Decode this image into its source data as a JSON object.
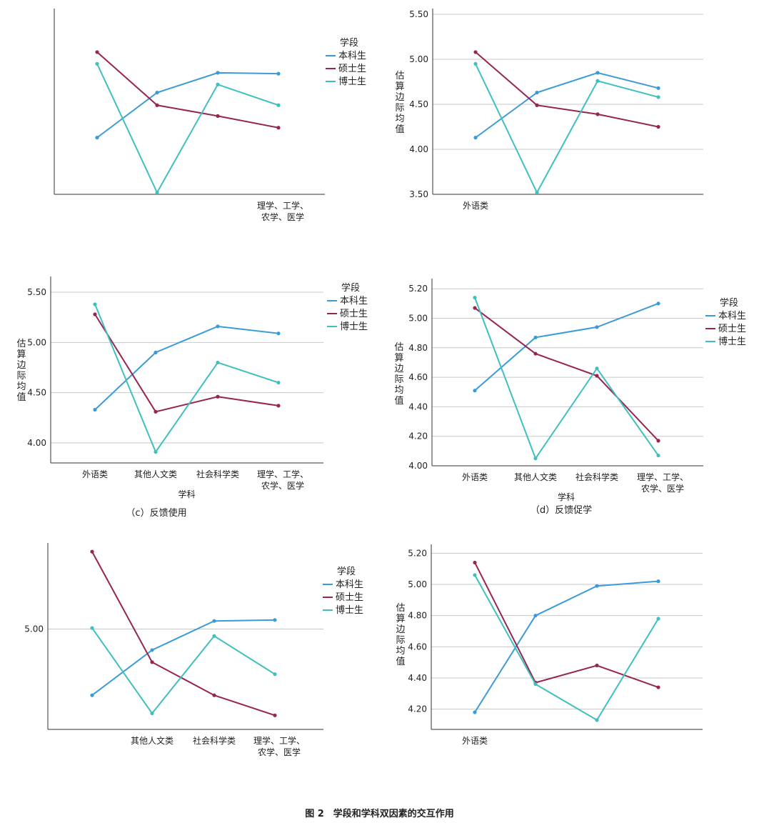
{
  "figure": {
    "caption": "图 2　学段和学科双因素的交互作用",
    "colors": {
      "本科生": "#3a9bd8",
      "硕士生": "#96254f",
      "博士生": "#3fbfbf",
      "axis": "#333333",
      "grid": "#c8c8c8"
    }
  },
  "chart_data": [
    {
      "type": "line",
      "categories": [
        "",
        "",
        "",
        "理学、工学、农学、医学"
      ],
      "series": [
        {
          "name": "本科生",
          "values": [
            4.13,
            4.63,
            4.85,
            4.84
          ]
        },
        {
          "name": "硕士生",
          "values": [
            5.08,
            4.49,
            4.37,
            4.24
          ]
        },
        {
          "name": "博士生",
          "values": [
            4.95,
            3.52,
            4.72,
            4.49
          ]
        }
      ],
      "ylabel": "",
      "xlabel": "",
      "subtitle": "",
      "ylim": [
        3.5,
        5.5
      ],
      "yticks": [],
      "ytick_labels": [],
      "legend": {
        "title": "学段",
        "position": "right"
      },
      "grid": true
    },
    {
      "type": "line",
      "categories": [
        "外语类",
        "",
        "",
        ""
      ],
      "series": [
        {
          "name": "本科生",
          "values": [
            4.13,
            4.63,
            4.85,
            4.68
          ]
        },
        {
          "name": "硕士生",
          "values": [
            5.08,
            4.49,
            4.39,
            4.25
          ]
        },
        {
          "name": "博士生",
          "values": [
            4.95,
            3.52,
            4.76,
            4.58
          ]
        }
      ],
      "ylabel": "估算边际均值",
      "xlabel": "",
      "subtitle": "",
      "ylim": [
        3.5,
        5.5
      ],
      "yticks": [
        3.5,
        4.0,
        4.5,
        5.0,
        5.5
      ],
      "ytick_labels": [
        "3.50",
        "4.00",
        "4.50",
        "5.00",
        "5.50"
      ],
      "legend": null,
      "grid": true
    },
    {
      "type": "line",
      "categories": [
        "外语类",
        "其他人文类",
        "社会科学类",
        "理学、工学、农学、医学"
      ],
      "series": [
        {
          "name": "本科生",
          "values": [
            4.33,
            4.9,
            5.16,
            5.09
          ]
        },
        {
          "name": "硕士生",
          "values": [
            5.28,
            4.31,
            4.46,
            4.37
          ]
        },
        {
          "name": "博士生",
          "values": [
            5.38,
            3.91,
            4.8,
            4.6
          ]
        }
      ],
      "ylabel": "估算边际均值",
      "xlabel": "学科",
      "subtitle": "（c）反馈使用",
      "ylim": [
        3.8,
        5.6
      ],
      "yticks": [
        4.0,
        4.5,
        5.0,
        5.5
      ],
      "ytick_labels": [
        "4.00",
        "4.50",
        "5.00",
        "5.50"
      ],
      "legend": {
        "title": "学段",
        "position": "right"
      },
      "grid": true
    },
    {
      "type": "line",
      "categories": [
        "外语类",
        "其他人文类",
        "社会科学类",
        "理学、工学、农学、医学"
      ],
      "series": [
        {
          "name": "本科生",
          "values": [
            4.51,
            4.87,
            4.94,
            5.1
          ]
        },
        {
          "name": "硕士生",
          "values": [
            5.07,
            4.76,
            4.61,
            4.17
          ]
        },
        {
          "name": "博士生",
          "values": [
            5.14,
            4.05,
            4.66,
            4.07
          ]
        }
      ],
      "ylabel": "估算边际均值",
      "xlabel": "学科",
      "subtitle": "（d）反馈促学",
      "ylim": [
        4.0,
        5.23
      ],
      "yticks": [
        4.0,
        4.2,
        4.4,
        4.6,
        4.8,
        5.0,
        5.2
      ],
      "ytick_labels": [
        "4.00",
        "4.20",
        "4.40",
        "4.60",
        "4.80",
        "5.00",
        "5.20"
      ],
      "legend": {
        "title": "学段",
        "position": "right"
      },
      "grid": true
    },
    {
      "type": "line",
      "categories": [
        "",
        "其他人文类",
        "社会科学类",
        "理学、工学、农学、医学"
      ],
      "series": [
        {
          "name": "本科生",
          "values": [
            4.34,
            4.79,
            5.08,
            5.09
          ]
        },
        {
          "name": "硕士生",
          "values": [
            5.77,
            4.67,
            4.34,
            4.14
          ]
        },
        {
          "name": "博士生",
          "values": [
            5.01,
            4.16,
            4.93,
            4.55
          ]
        }
      ],
      "ylabel": "",
      "xlabel": "",
      "subtitle": "",
      "ylim": [
        4.0,
        5.8
      ],
      "yticks": [
        5.0
      ],
      "ytick_labels": [
        "5.00"
      ],
      "legend": {
        "title": "学段",
        "position": "right"
      },
      "grid": true
    },
    {
      "type": "line",
      "categories": [
        "外语类",
        "",
        "",
        ""
      ],
      "series": [
        {
          "name": "本科生",
          "values": [
            4.18,
            4.8,
            4.99,
            5.02
          ]
        },
        {
          "name": "硕士生",
          "values": [
            5.14,
            4.37,
            4.48,
            4.34
          ]
        },
        {
          "name": "博士生",
          "values": [
            5.06,
            4.36,
            4.13,
            4.78
          ]
        }
      ],
      "ylabel": "估算边际均值",
      "xlabel": "",
      "subtitle": "",
      "ylim": [
        4.07,
        5.22
      ],
      "yticks": [
        4.2,
        4.4,
        4.6,
        4.8,
        5.0,
        5.2
      ],
      "ytick_labels": [
        "4.20",
        "4.40",
        "4.60",
        "4.80",
        "5.00",
        "5.20"
      ],
      "legend": null,
      "grid": true
    }
  ]
}
